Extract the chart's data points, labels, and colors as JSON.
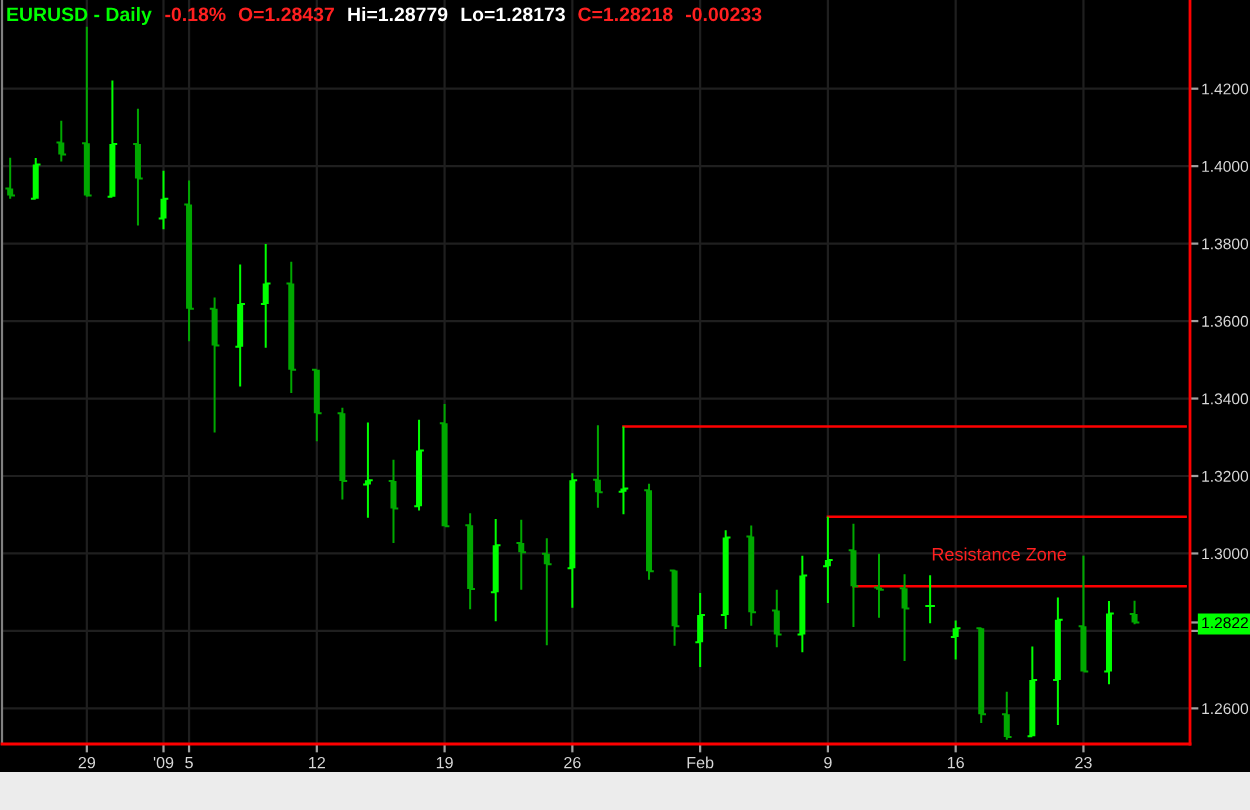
{
  "chart_data": {
    "type": "candlestick",
    "title": "EURUSD - Daily",
    "categories": [
      null,
      null,
      null,
      "29",
      null,
      null,
      "'09",
      "5",
      null,
      null,
      null,
      null,
      "12",
      null,
      null,
      null,
      null,
      "19",
      null,
      null,
      null,
      null,
      "26",
      null,
      null,
      null,
      null,
      "Feb",
      null,
      null,
      null,
      null,
      "9",
      null,
      null,
      null,
      null,
      "16",
      null,
      null,
      null,
      null,
      "23",
      null,
      null,
      null,
      null
    ],
    "series": [
      {
        "colors": [
          "#00a800",
          "#00ff00",
          "#00a800",
          "#00a800",
          "#00ff00",
          "#00a800",
          "#00ff00",
          "#00a800",
          "#00a800",
          "#00ff00",
          "#00ff00",
          "#00a800",
          "#00a800",
          "#00a800",
          "#00ff00",
          "#00a800",
          "#00ff00",
          "#00a800",
          "#00a800",
          "#00ff00",
          "#00a800",
          "#00a800",
          "#00ff00",
          "#00a800",
          "#00ff00",
          "#00a800",
          "#00a800",
          "#00ff00",
          "#00ff00",
          "#00a800",
          "#00a800",
          "#00ff00",
          "#00ff00",
          "#00a800",
          "#00a800",
          "#00a800",
          "#00ff00",
          "#00ff00",
          "#00a800",
          "#00a800",
          "#00ff00",
          "#00ff00",
          "#00a800",
          "#00ff00",
          "#00a800",
          null,
          null
        ],
        "ohlc": [
          [
            1.3942,
            1.4022,
            1.3916,
            1.3924
          ],
          [
            1.3916,
            1.4021,
            1.3916,
            1.4004
          ],
          [
            1.4061,
            1.4117,
            1.4012,
            1.403
          ],
          [
            1.4059,
            1.436,
            1.3921,
            1.3924
          ],
          [
            1.3921,
            1.4221,
            1.3921,
            1.4057
          ],
          [
            1.4057,
            1.4148,
            1.3847,
            1.3968
          ],
          [
            1.3865,
            1.3988,
            1.3837,
            1.3916
          ],
          [
            1.3901,
            1.3963,
            1.3548,
            1.3632
          ],
          [
            1.3632,
            1.3661,
            1.3312,
            1.3537
          ],
          [
            1.3534,
            1.3746,
            1.3431,
            1.3644
          ],
          [
            1.3644,
            1.3799,
            1.3531,
            1.3697
          ],
          [
            1.3697,
            1.3753,
            1.3414,
            1.3474
          ],
          [
            1.3474,
            1.3474,
            1.329,
            1.3362
          ],
          [
            1.3362,
            1.3376,
            1.3139,
            1.3187
          ],
          [
            1.3178,
            1.3338,
            1.3092,
            1.3189
          ],
          [
            1.3187,
            1.3242,
            1.3027,
            1.3116
          ],
          [
            1.3122,
            1.3345,
            1.3111,
            1.3266
          ],
          [
            1.3336,
            1.3386,
            1.307,
            1.307
          ],
          [
            1.3073,
            1.3104,
            1.2856,
            1.2908
          ],
          [
            1.29,
            1.3089,
            1.2825,
            1.3021
          ],
          [
            1.3027,
            1.3087,
            1.2906,
            1.3003
          ],
          [
            1.2999,
            1.3039,
            1.2763,
            1.2972
          ],
          [
            1.2962,
            1.3207,
            1.286,
            1.3189
          ],
          [
            1.319,
            1.3331,
            1.3118,
            1.3158
          ],
          [
            1.3159,
            1.3328,
            1.3101,
            1.3168
          ],
          [
            1.3163,
            1.318,
            1.2932,
            1.2954
          ],
          [
            1.2956,
            1.2958,
            1.2762,
            1.2812
          ],
          [
            1.2771,
            1.2898,
            1.2707,
            1.2841
          ],
          [
            1.2841,
            1.306,
            1.2805,
            1.3041
          ],
          [
            1.3044,
            1.3072,
            1.2813,
            1.2848
          ],
          [
            1.2853,
            1.2906,
            1.2758,
            1.2791
          ],
          [
            1.2791,
            1.2994,
            1.2745,
            1.2943
          ],
          [
            1.2967,
            1.3095,
            1.2872,
            1.2983
          ],
          [
            1.3008,
            1.3077,
            1.281,
            1.2915
          ],
          [
            1.2912,
            1.2999,
            1.2834,
            1.2906
          ],
          [
            1.291,
            1.2946,
            1.2722,
            1.2858
          ],
          [
            1.2864,
            1.2944,
            1.282,
            1.2864
          ],
          [
            1.2784,
            1.2827,
            1.2726,
            1.2807
          ],
          [
            1.2807,
            1.2808,
            1.2562,
            1.2585
          ],
          [
            1.2585,
            1.2643,
            1.2519,
            1.2526
          ],
          [
            1.2528,
            1.276,
            1.2528,
            1.2673
          ],
          [
            1.2673,
            1.2886,
            1.2557,
            1.2829
          ],
          [
            1.2812,
            1.2994,
            1.2695,
            1.2695
          ],
          [
            1.2695,
            1.2877,
            1.2662,
            1.2845
          ],
          [
            1.28437,
            1.28779,
            1.28173,
            1.28218
          ],
          null,
          null
        ]
      },
      {
        "type": "line",
        "color": "#ff0000",
        "values": [
          null,
          null,
          null,
          null,
          null,
          null,
          null,
          null,
          null,
          null,
          null,
          null,
          null,
          null,
          null,
          null,
          null,
          null,
          null,
          null,
          null,
          null,
          null,
          null,
          1.3328,
          1.3328,
          1.3328,
          1.3328,
          1.3328,
          1.3328,
          1.3328,
          1.3328,
          1.3328,
          1.3328,
          1.3328,
          1.3328,
          1.3328,
          1.3328,
          1.3328,
          1.3328,
          1.3328,
          1.3328,
          1.3328,
          1.3328,
          1.3328,
          1.3328,
          1.3328
        ]
      },
      {
        "type": "line",
        "color": "#ff0000",
        "values": [
          null,
          null,
          null,
          null,
          null,
          null,
          null,
          null,
          null,
          null,
          null,
          null,
          null,
          null,
          null,
          null,
          null,
          null,
          null,
          null,
          null,
          null,
          null,
          null,
          null,
          null,
          null,
          null,
          null,
          null,
          null,
          null,
          1.3095,
          1.3095,
          1.3095,
          1.3095,
          1.3095,
          1.3095,
          1.3095,
          1.3095,
          1.3095,
          1.3095,
          1.3095,
          1.3095,
          1.3095,
          1.3095,
          1.3095
        ]
      },
      {
        "type": "line",
        "color": "#ff0000",
        "name": "Resistance Zone",
        "values": [
          null,
          null,
          null,
          null,
          null,
          null,
          null,
          null,
          null,
          null,
          null,
          null,
          null,
          null,
          null,
          null,
          null,
          null,
          null,
          null,
          null,
          null,
          null,
          null,
          null,
          null,
          null,
          null,
          null,
          null,
          null,
          null,
          null,
          1.2915,
          1.2915,
          1.2915,
          1.2915,
          1.2915,
          1.2915,
          1.2915,
          1.2915,
          1.2915,
          1.2915,
          1.2915,
          1.2915,
          1.2915,
          1.2915
        ]
      }
    ],
    "ylim": [
      1.2508,
      1.4429
    ],
    "yticks": [
      {
        "value": 1.26,
        "label": "1.2600"
      },
      {
        "value": 1.28,
        "label": null
      },
      {
        "value": 1.28218,
        "label": "1.2822"
      },
      {
        "value": 1.3,
        "label": "1.3000"
      },
      {
        "value": 1.32,
        "label": "1.3200"
      },
      {
        "value": 1.34,
        "label": "1.3400"
      },
      {
        "value": 1.36,
        "label": "1.3600"
      },
      {
        "value": 1.38,
        "label": "1.3800"
      },
      {
        "value": 1.4,
        "label": "1.4000"
      },
      {
        "value": 1.42,
        "label": "1.4200"
      }
    ],
    "grid": true,
    "annotations": [
      "-0.18%",
      "O=1.28437",
      "Hi=1.28779",
      "Lo=1.28173",
      "C=1.28218",
      "-0.00233"
    ]
  }
}
